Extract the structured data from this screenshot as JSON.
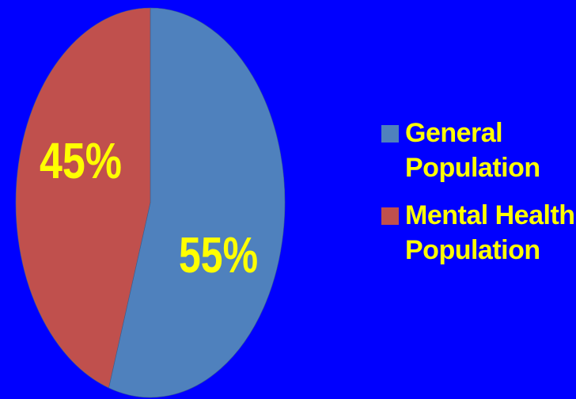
{
  "background_color": "#0000FF",
  "label_color": "#FFFF00",
  "chart_data": {
    "type": "pie",
    "title": "",
    "series": [
      {
        "name": "General Population",
        "value": 55,
        "label": "55%",
        "color": "#4F81BD"
      },
      {
        "name": "Mental Health Population",
        "value": 45,
        "label": "45%",
        "color": "#C0504D"
      }
    ],
    "legend": {
      "placement": "right",
      "items": [
        {
          "label": "General Population",
          "color": "#4F81BD"
        },
        {
          "label": "Mental Health Population",
          "color": "#C0504D"
        }
      ]
    }
  }
}
